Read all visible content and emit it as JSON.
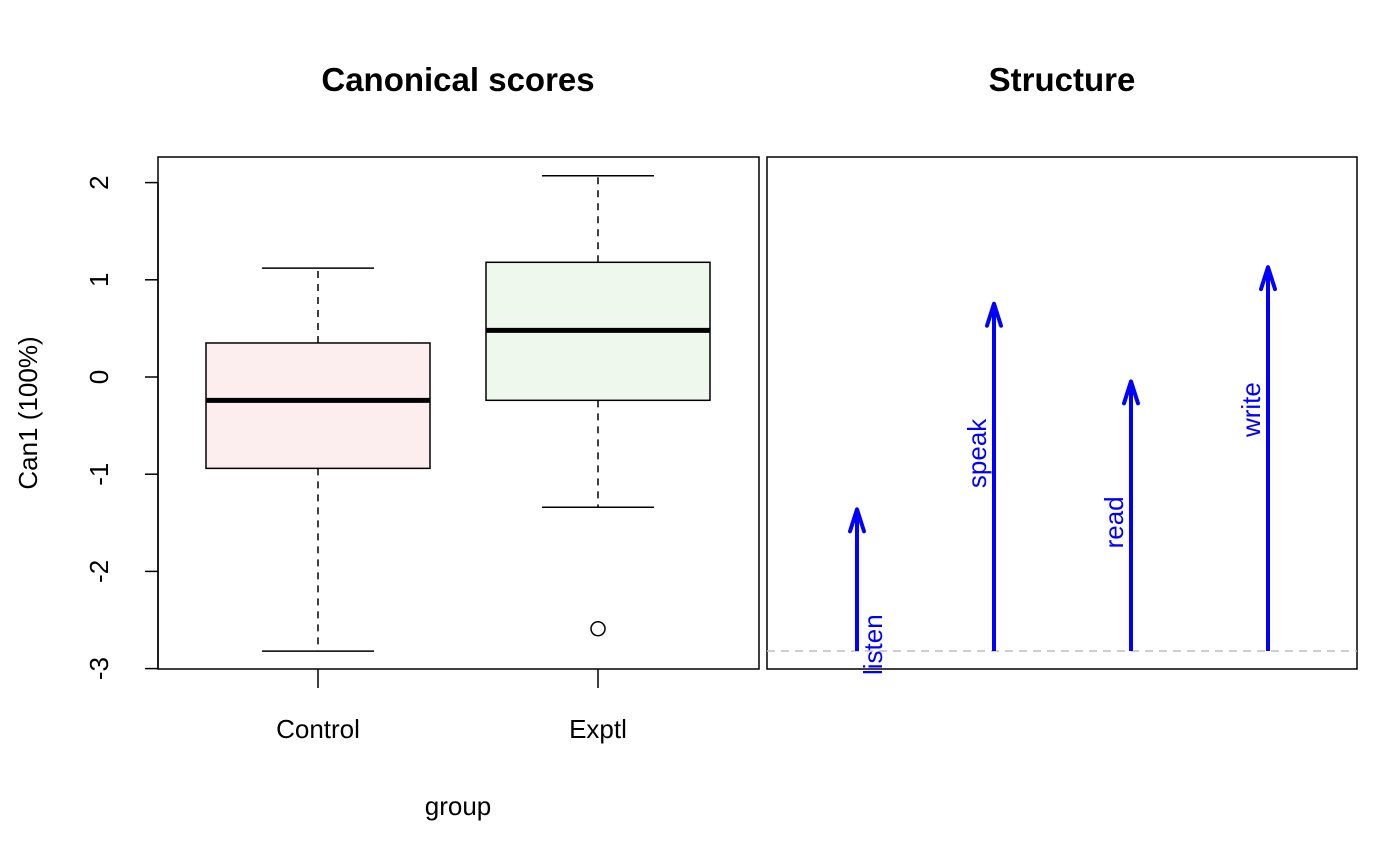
{
  "chart_data": [
    {
      "type": "box",
      "title": "Canonical scores",
      "xlabel": "group",
      "ylabel": "Can1 (100%)",
      "ylim": [
        -3,
        2
      ],
      "yticks": [
        "-3",
        "-2",
        "-1",
        "0",
        "1",
        "2"
      ],
      "categories": [
        "Control",
        "Exptl"
      ],
      "boxes": [
        {
          "name": "Control",
          "whisker_low": -2.82,
          "q1": -0.94,
          "median": -0.24,
          "q3": 0.35,
          "whisker_high": 1.12,
          "outliers": [],
          "fill": "#FCEEEF"
        },
        {
          "name": "Exptl",
          "whisker_low": -1.34,
          "q1": -0.24,
          "median": 0.48,
          "q3": 1.18,
          "whisker_high": 2.07,
          "outliers": [
            -2.59
          ],
          "fill": "#EFF8EC"
        }
      ]
    },
    {
      "type": "vector",
      "title": "Structure",
      "baseline_color": "#BEBEBE",
      "arrow_color": "#0000FF",
      "vectors": [
        {
          "label": "listen",
          "value": 0.31
        },
        {
          "label": "speak",
          "value": 0.76
        },
        {
          "label": "read",
          "value": 0.59
        },
        {
          "label": "write",
          "value": 0.84
        }
      ]
    }
  ]
}
